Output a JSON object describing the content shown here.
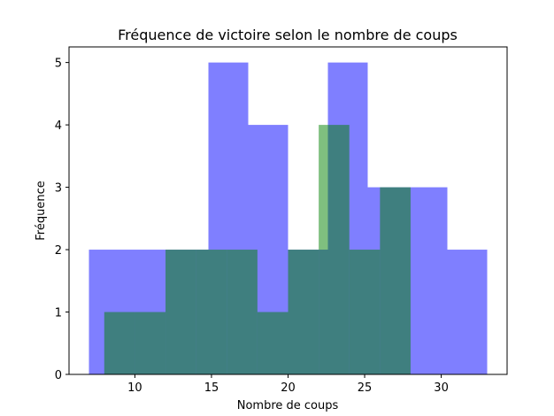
{
  "chart_data": {
    "type": "bar",
    "title": "Fréquence de victoire selon le nombre de coups",
    "xlabel": "Nombre de coups",
    "ylabel": "Fréquence",
    "xlim": [
      5.7,
      34.3
    ],
    "ylim": [
      0,
      5.25
    ],
    "xticks": [
      10,
      15,
      20,
      25,
      30
    ],
    "yticks": [
      0,
      1,
      2,
      3,
      4,
      5
    ],
    "grid": false,
    "series": [
      {
        "color": "#0000ff",
        "opacity": 0.5,
        "bins": [
          {
            "x0": 7,
            "x1": 9.6,
            "count": 2
          },
          {
            "x0": 9.6,
            "x1": 12.2,
            "count": 2
          },
          {
            "x0": 12.2,
            "x1": 14.8,
            "count": 2
          },
          {
            "x0": 14.8,
            "x1": 17.4,
            "count": 5
          },
          {
            "x0": 17.4,
            "x1": 20.0,
            "count": 4
          },
          {
            "x0": 20.0,
            "x1": 22.6,
            "count": 2
          },
          {
            "x0": 22.6,
            "x1": 25.2,
            "count": 5
          },
          {
            "x0": 25.2,
            "x1": 27.8,
            "count": 3
          },
          {
            "x0": 27.8,
            "x1": 30.4,
            "count": 3
          },
          {
            "x0": 30.4,
            "x1": 33.0,
            "count": 2
          }
        ]
      },
      {
        "color": "#008000",
        "opacity": 0.5,
        "bins": [
          {
            "x0": 8,
            "x1": 10,
            "count": 1
          },
          {
            "x0": 10,
            "x1": 12,
            "count": 1
          },
          {
            "x0": 12,
            "x1": 14,
            "count": 2
          },
          {
            "x0": 14,
            "x1": 16,
            "count": 2
          },
          {
            "x0": 16,
            "x1": 18,
            "count": 2
          },
          {
            "x0": 18,
            "x1": 20,
            "count": 1
          },
          {
            "x0": 20,
            "x1": 22,
            "count": 2
          },
          {
            "x0": 22,
            "x1": 24,
            "count": 4
          },
          {
            "x0": 24,
            "x1": 26,
            "count": 2
          },
          {
            "x0": 26,
            "x1": 28,
            "count": 3
          }
        ]
      }
    ]
  }
}
